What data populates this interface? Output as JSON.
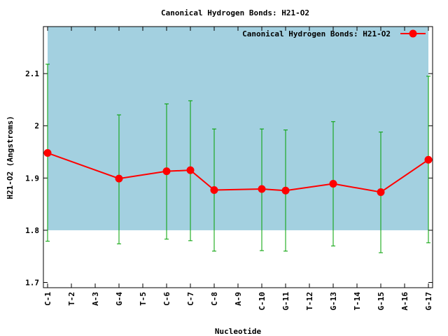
{
  "chart_data": {
    "type": "line",
    "title": "Canonical Hydrogen Bonds: H21-O2",
    "xlabel": "Nucleotide",
    "ylabel": "H21-O2 (Angstroms)",
    "categories": [
      "C-1",
      "T-2",
      "A-3",
      "G-4",
      "T-5",
      "C-6",
      "C-7",
      "C-8",
      "A-9",
      "C-10",
      "G-11",
      "T-12",
      "G-13",
      "T-14",
      "G-15",
      "A-16",
      "G-17"
    ],
    "yticks": [
      "1.7",
      "1.8",
      "1.9",
      "2",
      "2.1"
    ],
    "ylim": [
      1.69,
      2.19
    ],
    "shaded_band": [
      1.8,
      2.19
    ],
    "grid": false,
    "legend_position": "top-right",
    "colors": {
      "band": "#a3d0e0",
      "series_line": "#ff0000",
      "error_bars": "#00a000",
      "axis": "#000000"
    },
    "series": [
      {
        "name": "Canonical Hydrogen Bonds: H21-O2",
        "points": [
          {
            "x": "C-1",
            "y": 1.948,
            "ylow": 1.779,
            "yhigh": 2.118
          },
          {
            "x": "G-4",
            "y": 1.899,
            "ylow": 1.774,
            "yhigh": 2.021
          },
          {
            "x": "C-6",
            "y": 1.913,
            "ylow": 1.783,
            "yhigh": 2.042
          },
          {
            "x": "C-7",
            "y": 1.915,
            "ylow": 1.78,
            "yhigh": 2.048
          },
          {
            "x": "C-8",
            "y": 1.877,
            "ylow": 1.76,
            "yhigh": 1.994
          },
          {
            "x": "C-10",
            "y": 1.879,
            "ylow": 1.761,
            "yhigh": 1.994
          },
          {
            "x": "G-11",
            "y": 1.876,
            "ylow": 1.76,
            "yhigh": 1.992
          },
          {
            "x": "G-13",
            "y": 1.889,
            "ylow": 1.77,
            "yhigh": 2.008
          },
          {
            "x": "G-15",
            "y": 1.873,
            "ylow": 1.757,
            "yhigh": 1.988
          },
          {
            "x": "G-17",
            "y": 1.935,
            "ylow": 1.776,
            "yhigh": 2.095
          }
        ]
      }
    ]
  }
}
